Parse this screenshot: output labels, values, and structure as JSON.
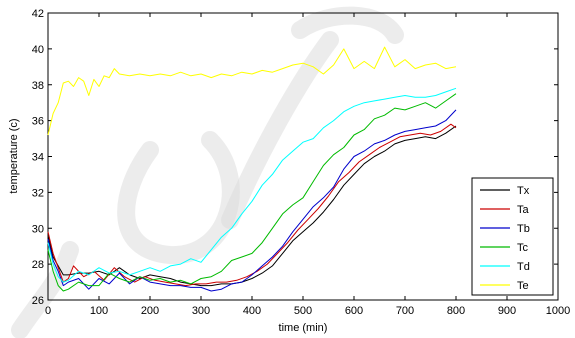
{
  "chart_data": {
    "type": "line",
    "title": "",
    "xlabel": "time (min)",
    "ylabel": "temperature (c)",
    "xlim": [
      0,
      1000
    ],
    "ylim": [
      26,
      42
    ],
    "xticks": [
      0,
      100,
      200,
      300,
      400,
      500,
      600,
      700,
      800,
      900,
      1000
    ],
    "yticks": [
      26,
      28,
      30,
      32,
      34,
      36,
      38,
      40,
      42
    ],
    "grid": false,
    "legend_position": "bottom-right",
    "series": [
      {
        "name": "Tx",
        "color": "#000000",
        "points": [
          [
            0,
            29.6
          ],
          [
            10,
            28.4
          ],
          [
            20,
            27.9
          ],
          [
            30,
            27.4
          ],
          [
            40,
            27.4
          ],
          [
            60,
            27.5
          ],
          [
            80,
            27.5
          ],
          [
            100,
            27.6
          ],
          [
            120,
            27.4
          ],
          [
            140,
            27.8
          ],
          [
            160,
            27.4
          ],
          [
            180,
            27.2
          ],
          [
            200,
            27.4
          ],
          [
            220,
            27.3
          ],
          [
            240,
            27.2
          ],
          [
            260,
            27.0
          ],
          [
            280,
            26.9
          ],
          [
            300,
            26.8
          ],
          [
            320,
            26.8
          ],
          [
            340,
            26.9
          ],
          [
            360,
            26.9
          ],
          [
            380,
            27.0
          ],
          [
            400,
            27.2
          ],
          [
            420,
            27.5
          ],
          [
            440,
            27.9
          ],
          [
            460,
            28.6
          ],
          [
            480,
            29.3
          ],
          [
            500,
            29.8
          ],
          [
            520,
            30.3
          ],
          [
            540,
            30.9
          ],
          [
            560,
            31.6
          ],
          [
            580,
            32.4
          ],
          [
            600,
            33.0
          ],
          [
            620,
            33.6
          ],
          [
            640,
            34.0
          ],
          [
            660,
            34.3
          ],
          [
            680,
            34.7
          ],
          [
            700,
            34.9
          ],
          [
            720,
            35.0
          ],
          [
            740,
            35.1
          ],
          [
            760,
            35.0
          ],
          [
            780,
            35.3
          ],
          [
            800,
            35.7
          ]
        ]
      },
      {
        "name": "Ta",
        "color": "#cc0000",
        "points": [
          [
            0,
            29.8
          ],
          [
            10,
            28.6
          ],
          [
            20,
            27.8
          ],
          [
            30,
            27.0
          ],
          [
            40,
            27.2
          ],
          [
            50,
            27.9
          ],
          [
            70,
            27.3
          ],
          [
            90,
            27.6
          ],
          [
            110,
            27.1
          ],
          [
            130,
            27.8
          ],
          [
            150,
            27.3
          ],
          [
            170,
            27.0
          ],
          [
            190,
            27.3
          ],
          [
            210,
            27.1
          ],
          [
            230,
            27.0
          ],
          [
            250,
            26.9
          ],
          [
            270,
            26.8
          ],
          [
            290,
            26.9
          ],
          [
            310,
            26.9
          ],
          [
            330,
            27.0
          ],
          [
            350,
            27.0
          ],
          [
            370,
            27.1
          ],
          [
            390,
            27.3
          ],
          [
            410,
            27.6
          ],
          [
            430,
            28.0
          ],
          [
            450,
            28.6
          ],
          [
            470,
            29.2
          ],
          [
            490,
            29.9
          ],
          [
            510,
            30.5
          ],
          [
            530,
            31.1
          ],
          [
            550,
            31.8
          ],
          [
            570,
            32.6
          ],
          [
            590,
            33.1
          ],
          [
            610,
            33.7
          ],
          [
            630,
            34.1
          ],
          [
            650,
            34.5
          ],
          [
            670,
            34.8
          ],
          [
            690,
            35.1
          ],
          [
            710,
            35.2
          ],
          [
            730,
            35.3
          ],
          [
            750,
            35.2
          ],
          [
            770,
            35.4
          ],
          [
            790,
            35.8
          ],
          [
            800,
            35.6
          ]
        ]
      },
      {
        "name": "Tb",
        "color": "#0000cc",
        "points": [
          [
            0,
            29.4
          ],
          [
            10,
            28.2
          ],
          [
            20,
            27.6
          ],
          [
            30,
            26.8
          ],
          [
            40,
            27.0
          ],
          [
            60,
            27.2
          ],
          [
            80,
            26.6
          ],
          [
            100,
            27.2
          ],
          [
            120,
            26.9
          ],
          [
            140,
            27.5
          ],
          [
            160,
            26.9
          ],
          [
            180,
            27.3
          ],
          [
            200,
            27.0
          ],
          [
            220,
            26.9
          ],
          [
            240,
            26.8
          ],
          [
            260,
            26.8
          ],
          [
            280,
            26.7
          ],
          [
            300,
            26.7
          ],
          [
            320,
            26.5
          ],
          [
            340,
            26.6
          ],
          [
            360,
            26.9
          ],
          [
            380,
            27.0
          ],
          [
            400,
            27.4
          ],
          [
            420,
            27.9
          ],
          [
            440,
            28.4
          ],
          [
            460,
            29.0
          ],
          [
            480,
            29.8
          ],
          [
            500,
            30.5
          ],
          [
            520,
            31.2
          ],
          [
            540,
            31.7
          ],
          [
            560,
            32.3
          ],
          [
            580,
            33.3
          ],
          [
            600,
            34.0
          ],
          [
            620,
            34.3
          ],
          [
            640,
            34.7
          ],
          [
            660,
            34.9
          ],
          [
            680,
            35.2
          ],
          [
            700,
            35.4
          ],
          [
            720,
            35.5
          ],
          [
            740,
            35.6
          ],
          [
            760,
            35.7
          ],
          [
            780,
            36.0
          ],
          [
            800,
            36.6
          ]
        ]
      },
      {
        "name": "Tc",
        "color": "#00bb00",
        "points": [
          [
            0,
            28.8
          ],
          [
            10,
            27.6
          ],
          [
            20,
            26.8
          ],
          [
            30,
            26.5
          ],
          [
            40,
            26.6
          ],
          [
            60,
            27.0
          ],
          [
            80,
            26.8
          ],
          [
            100,
            26.8
          ],
          [
            120,
            27.5
          ],
          [
            140,
            27.2
          ],
          [
            160,
            27.0
          ],
          [
            180,
            27.3
          ],
          [
            200,
            27.1
          ],
          [
            220,
            27.2
          ],
          [
            240,
            27.0
          ],
          [
            260,
            27.1
          ],
          [
            280,
            26.9
          ],
          [
            300,
            27.2
          ],
          [
            320,
            27.3
          ],
          [
            340,
            27.6
          ],
          [
            360,
            28.2
          ],
          [
            380,
            28.4
          ],
          [
            400,
            28.6
          ],
          [
            420,
            29.2
          ],
          [
            440,
            30.0
          ],
          [
            460,
            30.8
          ],
          [
            480,
            31.3
          ],
          [
            500,
            31.7
          ],
          [
            520,
            32.6
          ],
          [
            540,
            33.5
          ],
          [
            560,
            34.1
          ],
          [
            580,
            34.5
          ],
          [
            600,
            35.2
          ],
          [
            620,
            35.5
          ],
          [
            640,
            36.1
          ],
          [
            660,
            36.3
          ],
          [
            680,
            36.7
          ],
          [
            700,
            36.6
          ],
          [
            720,
            36.8
          ],
          [
            740,
            37.0
          ],
          [
            760,
            36.7
          ],
          [
            780,
            37.1
          ],
          [
            800,
            37.5
          ]
        ]
      },
      {
        "name": "Td",
        "color": "#00ffff",
        "points": [
          [
            0,
            29.2
          ],
          [
            10,
            28.0
          ],
          [
            20,
            27.3
          ],
          [
            30,
            27.0
          ],
          [
            40,
            27.1
          ],
          [
            60,
            27.6
          ],
          [
            80,
            27.4
          ],
          [
            100,
            27.8
          ],
          [
            120,
            27.5
          ],
          [
            140,
            27.6
          ],
          [
            160,
            27.4
          ],
          [
            180,
            27.6
          ],
          [
            200,
            27.8
          ],
          [
            220,
            27.6
          ],
          [
            240,
            27.9
          ],
          [
            260,
            28.0
          ],
          [
            280,
            28.3
          ],
          [
            300,
            28.1
          ],
          [
            320,
            28.8
          ],
          [
            340,
            29.5
          ],
          [
            360,
            30.0
          ],
          [
            380,
            30.8
          ],
          [
            400,
            31.5
          ],
          [
            420,
            32.4
          ],
          [
            440,
            33.0
          ],
          [
            460,
            33.8
          ],
          [
            480,
            34.3
          ],
          [
            500,
            34.8
          ],
          [
            520,
            35.0
          ],
          [
            540,
            35.6
          ],
          [
            560,
            36.0
          ],
          [
            580,
            36.5
          ],
          [
            600,
            36.8
          ],
          [
            620,
            37.0
          ],
          [
            640,
            37.1
          ],
          [
            660,
            37.2
          ],
          [
            680,
            37.3
          ],
          [
            700,
            37.4
          ],
          [
            720,
            37.3
          ],
          [
            740,
            37.3
          ],
          [
            760,
            37.4
          ],
          [
            780,
            37.6
          ],
          [
            800,
            37.8
          ]
        ]
      },
      {
        "name": "Te",
        "color": "#ffff00",
        "points": [
          [
            0,
            35.2
          ],
          [
            10,
            36.4
          ],
          [
            20,
            37.0
          ],
          [
            30,
            38.1
          ],
          [
            40,
            38.2
          ],
          [
            50,
            37.9
          ],
          [
            60,
            38.4
          ],
          [
            70,
            38.2
          ],
          [
            80,
            37.4
          ],
          [
            90,
            38.3
          ],
          [
            100,
            37.9
          ],
          [
            110,
            38.5
          ],
          [
            120,
            38.4
          ],
          [
            130,
            38.9
          ],
          [
            140,
            38.6
          ],
          [
            160,
            38.5
          ],
          [
            180,
            38.6
          ],
          [
            200,
            38.5
          ],
          [
            220,
            38.6
          ],
          [
            240,
            38.5
          ],
          [
            260,
            38.7
          ],
          [
            280,
            38.5
          ],
          [
            300,
            38.6
          ],
          [
            320,
            38.4
          ],
          [
            340,
            38.6
          ],
          [
            360,
            38.5
          ],
          [
            380,
            38.7
          ],
          [
            400,
            38.6
          ],
          [
            420,
            38.8
          ],
          [
            440,
            38.7
          ],
          [
            460,
            38.9
          ],
          [
            480,
            39.1
          ],
          [
            500,
            39.2
          ],
          [
            520,
            39.0
          ],
          [
            540,
            38.6
          ],
          [
            560,
            39.1
          ],
          [
            580,
            40.0
          ],
          [
            600,
            38.9
          ],
          [
            620,
            39.3
          ],
          [
            640,
            38.9
          ],
          [
            660,
            40.1
          ],
          [
            680,
            39.0
          ],
          [
            700,
            39.4
          ],
          [
            720,
            38.9
          ],
          [
            740,
            39.1
          ],
          [
            760,
            39.2
          ],
          [
            780,
            38.9
          ],
          [
            800,
            39.0
          ]
        ]
      }
    ]
  }
}
